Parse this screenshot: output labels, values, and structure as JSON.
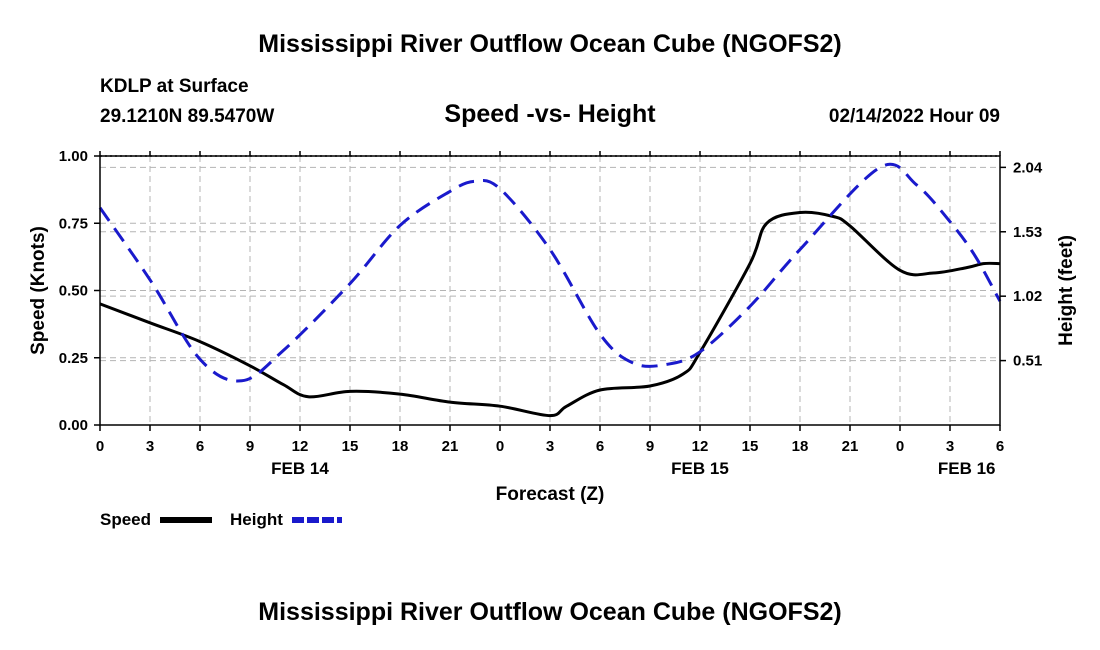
{
  "titles": {
    "main": "Mississippi River Outflow Ocean Cube (NGOFS2)",
    "main_repeat": "Mississippi River Outflow Ocean Cube (NGOFS2)",
    "station": "KDLP at Surface",
    "coords": "29.1210N  89.5470W",
    "subtitle": "Speed -vs- Height",
    "date": "02/14/2022 Hour 09"
  },
  "chart_data": {
    "type": "line",
    "title": "Speed -vs- Height",
    "xlabel": "Forecast (Z)",
    "ylabel_left": "Speed (Knots)",
    "ylabel_right": "Height (feet)",
    "x_range_hours": [
      0,
      54
    ],
    "x_ticks": [
      0,
      3,
      6,
      9,
      12,
      15,
      18,
      21,
      24,
      27,
      30,
      33,
      36,
      39,
      42,
      45,
      48,
      51,
      54
    ],
    "x_tick_labels": [
      "0",
      "3",
      "6",
      "9",
      "12",
      "15",
      "18",
      "21",
      "0",
      "3",
      "6",
      "9",
      "12",
      "15",
      "18",
      "21",
      "0",
      "3",
      "6"
    ],
    "date_labels": [
      {
        "hour": 12,
        "label": "FEB 14"
      },
      {
        "hour": 36,
        "label": "FEB 15"
      },
      {
        "hour": 52,
        "label": "FEB 16"
      }
    ],
    "y_left": {
      "range": [
        0,
        1
      ],
      "ticks": [
        0,
        0.25,
        0.5,
        0.75,
        1
      ],
      "tick_labels": [
        "0.00",
        "0.25",
        "0.50",
        "0.75",
        "1.00"
      ]
    },
    "y_right": {
      "range": [
        0,
        2.13
      ],
      "ticks": [
        0.51,
        1.02,
        1.53,
        2.04
      ],
      "tick_labels": [
        "0.51",
        "1.02",
        "1.53",
        "2.04"
      ]
    },
    "grid": true,
    "series": [
      {
        "name": "Speed",
        "axis": "left",
        "color": "#000000",
        "style": "solid",
        "x": [
          0,
          3,
          6,
          9,
          11,
          12.5,
          15,
          18,
          21,
          24,
          27,
          28,
          30,
          33,
          35,
          36,
          39,
          40,
          42,
          44,
          45,
          48,
          50,
          52,
          53,
          54
        ],
        "y": [
          0.45,
          0.38,
          0.31,
          0.22,
          0.15,
          0.105,
          0.125,
          0.115,
          0.085,
          0.07,
          0.035,
          0.07,
          0.13,
          0.145,
          0.19,
          0.27,
          0.6,
          0.75,
          0.79,
          0.775,
          0.74,
          0.575,
          0.565,
          0.585,
          0.6,
          0.6
        ]
      },
      {
        "name": "Height",
        "axis": "right",
        "color": "#1a1acc",
        "style": "dashed",
        "x": [
          0,
          3,
          6,
          8.5,
          11,
          15,
          18,
          21,
          22.5,
          24,
          27,
          30,
          32,
          34,
          36,
          39,
          42,
          46.8,
          49,
          51,
          52.5,
          54
        ],
        "y": [
          1.72,
          1.15,
          0.52,
          0.35,
          0.59,
          1.12,
          1.58,
          1.85,
          1.93,
          1.87,
          1.39,
          0.72,
          0.49,
          0.48,
          0.58,
          0.94,
          1.39,
          2.04,
          1.9,
          1.61,
          1.34,
          0.98
        ]
      }
    ],
    "legend": {
      "placement": "bottom-left",
      "entries": [
        {
          "label": "Speed",
          "color": "#000000",
          "style": "solid"
        },
        {
          "label": "Height",
          "color": "#1a1acc",
          "style": "dashed"
        }
      ]
    }
  }
}
